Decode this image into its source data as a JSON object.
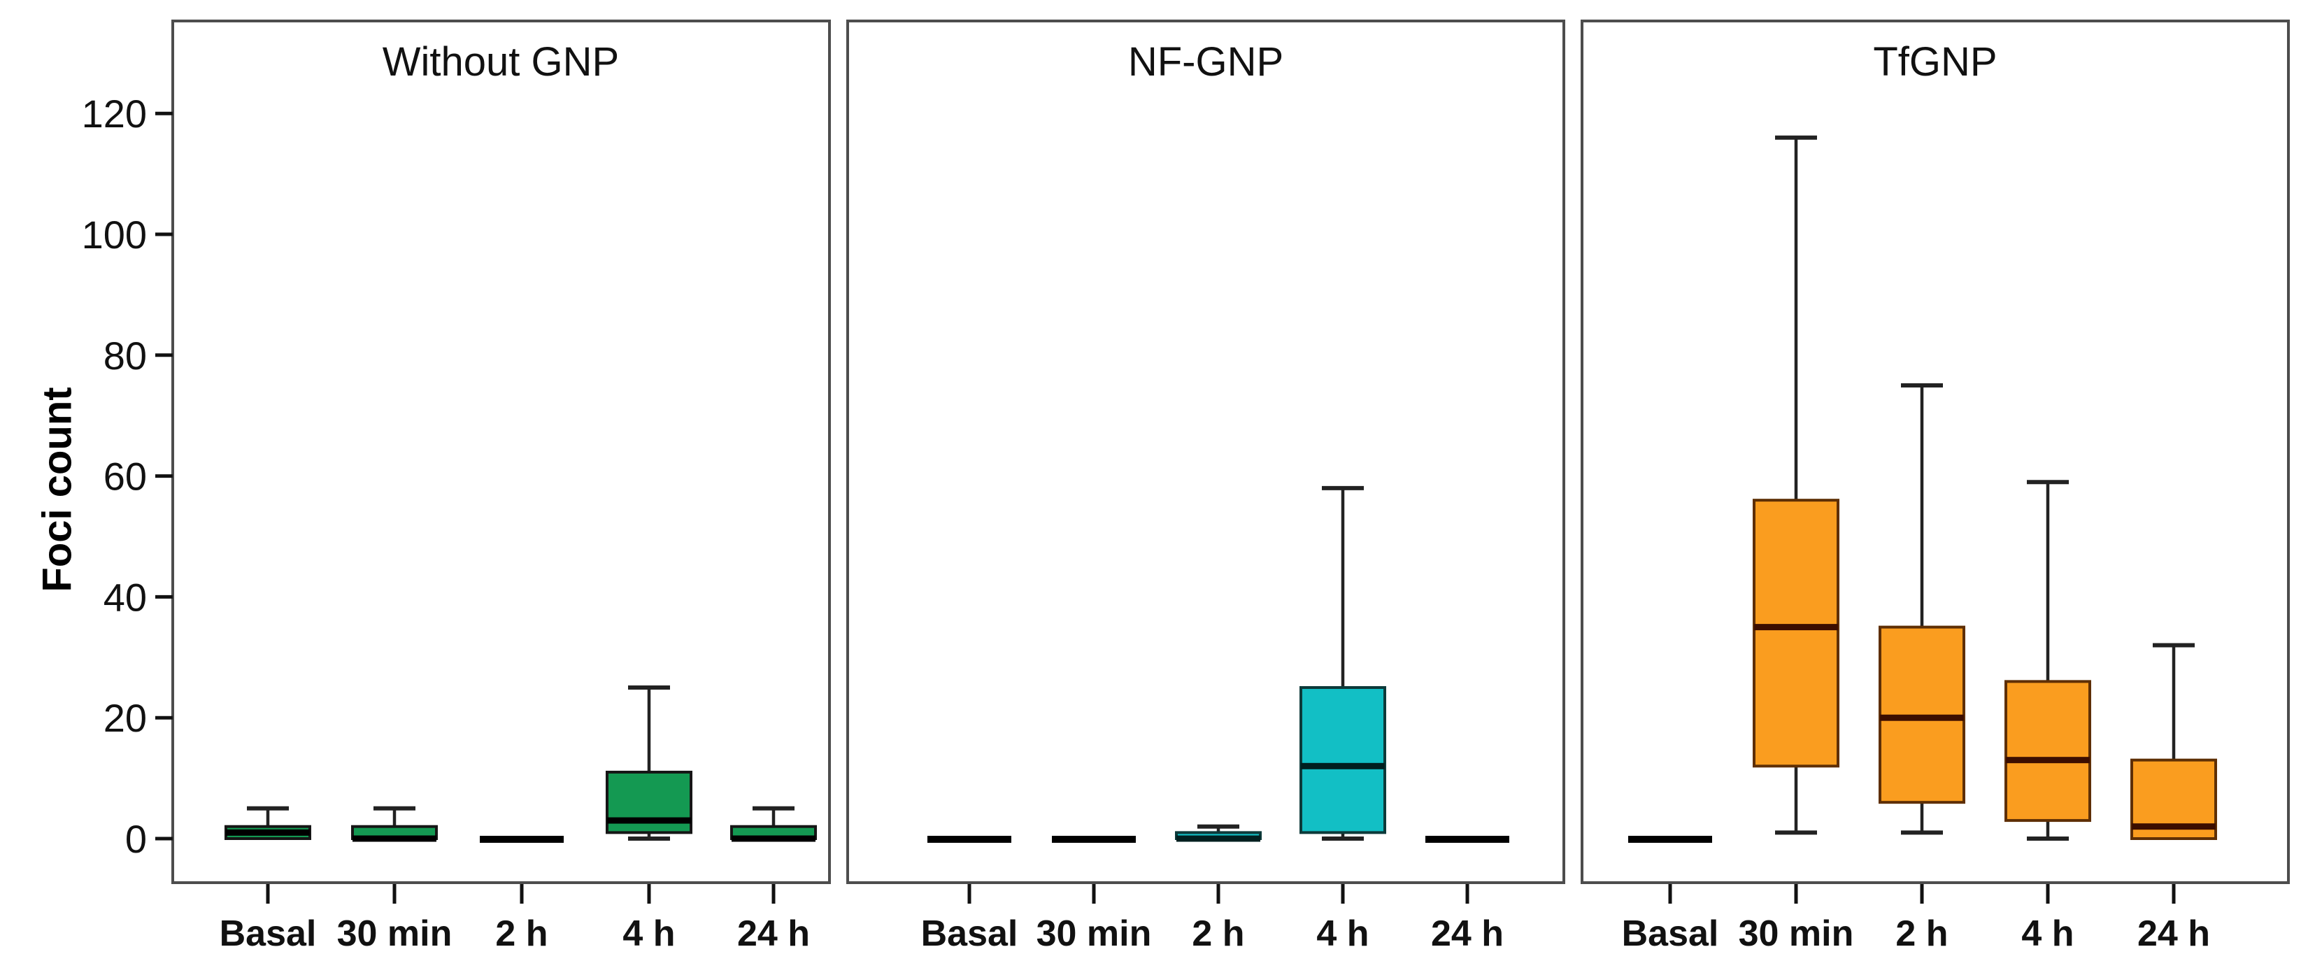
{
  "figure": {
    "ylabel": "Foci count",
    "background": "#ffffff",
    "frame_color": "#4d4d4d"
  },
  "chart_data": {
    "type": "box",
    "ylabel": "Foci count",
    "yticks": [
      0,
      20,
      40,
      60,
      80,
      100,
      120
    ],
    "ylim": [
      -8,
      137
    ],
    "grid": false,
    "legend": "none",
    "categories": [
      "Basal",
      "30 min",
      "2 h",
      "4 h",
      "24 h"
    ],
    "panels": [
      {
        "title": "Without GNP",
        "fill_color": "#149952",
        "border_color": "#161616",
        "median_color": "#000000",
        "boxes": [
          {
            "min": 0,
            "q1": 0,
            "median": 1,
            "q3": 2,
            "max": 5
          },
          {
            "min": 0,
            "q1": 0,
            "median": 0,
            "q3": 2,
            "max": 5
          },
          {
            "min": 0,
            "q1": 0,
            "median": 0,
            "q3": 0,
            "max": 0
          },
          {
            "min": 0,
            "q1": 1,
            "median": 3,
            "q3": 11,
            "max": 25
          },
          {
            "min": 0,
            "q1": 0,
            "median": 0,
            "q3": 2,
            "max": 5
          }
        ]
      },
      {
        "title": "NF-GNP",
        "fill_color": "#12BFC5",
        "border_color": "#0d3a3a",
        "median_color": "#001f1f",
        "boxes": [
          {
            "min": 0,
            "q1": 0,
            "median": 0,
            "q3": 0,
            "max": 0
          },
          {
            "min": 0,
            "q1": 0,
            "median": 0,
            "q3": 0,
            "max": 0
          },
          {
            "min": 0,
            "q1": 0,
            "median": 0,
            "q3": 1,
            "max": 2
          },
          {
            "min": 0,
            "q1": 1,
            "median": 12,
            "q3": 25,
            "max": 58
          },
          {
            "min": 0,
            "q1": 0,
            "median": 0,
            "q3": 0,
            "max": 0
          }
        ]
      },
      {
        "title": "TfGNP",
        "fill_color": "#FA9D1F",
        "border_color": "#5e2f05",
        "median_color": "#3c0e00",
        "boxes": [
          {
            "min": 0,
            "q1": 0,
            "median": 0,
            "q3": 0,
            "max": 0
          },
          {
            "min": 1,
            "q1": 12,
            "median": 35,
            "q3": 56,
            "max": 116
          },
          {
            "min": 1,
            "q1": 6,
            "median": 20,
            "q3": 35,
            "max": 75
          },
          {
            "min": 0,
            "q1": 3,
            "median": 13,
            "q3": 26,
            "max": 59
          },
          {
            "min": 0,
            "q1": 0,
            "median": 2,
            "q3": 13,
            "max": 32
          }
        ]
      }
    ]
  }
}
